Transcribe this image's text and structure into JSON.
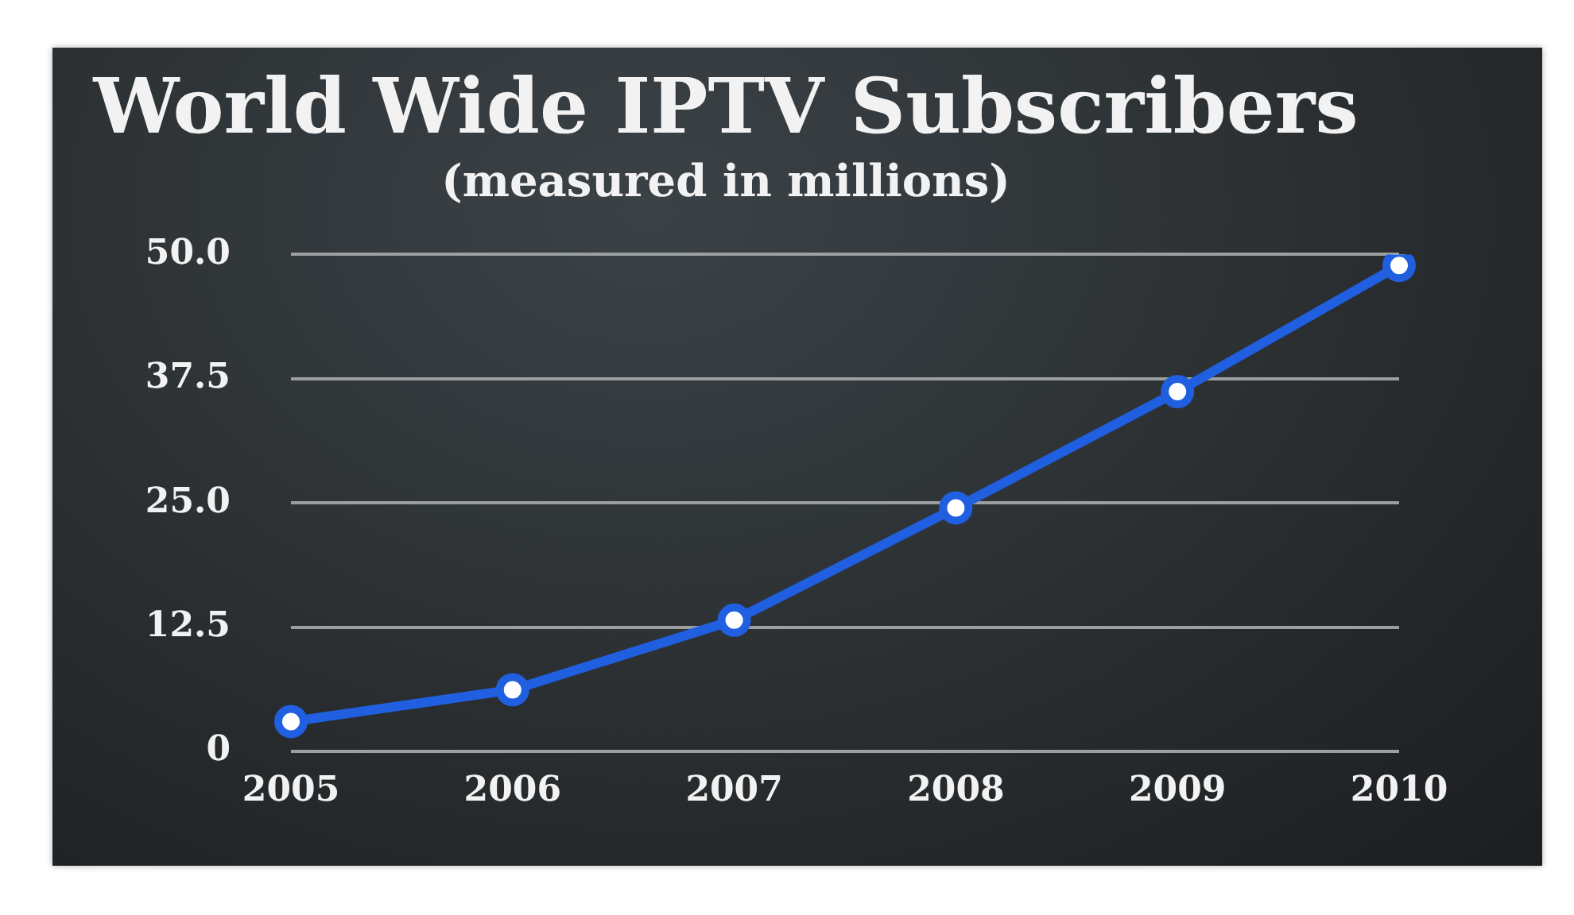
{
  "chart_data": {
    "type": "line",
    "title": "World Wide IPTV Subscribers",
    "subtitle": "(measured in millions)",
    "categories": [
      "2005",
      "2006",
      "2007",
      "2008",
      "2009",
      "2010"
    ],
    "series": [
      {
        "color": "#1f5fe0",
        "values": [
          3.0,
          6.2,
          13.2,
          24.5,
          36.2,
          48.9
        ]
      }
    ],
    "ylim": [
      0,
      50
    ],
    "yticks": [
      0,
      12.5,
      {
        "value": 25,
        "label": "25.0"
      },
      37.5,
      {
        "value": 50,
        "label": "50.0"
      }
    ],
    "grid": "y",
    "legend": false,
    "marker": "circle",
    "line_style": "solid"
  }
}
